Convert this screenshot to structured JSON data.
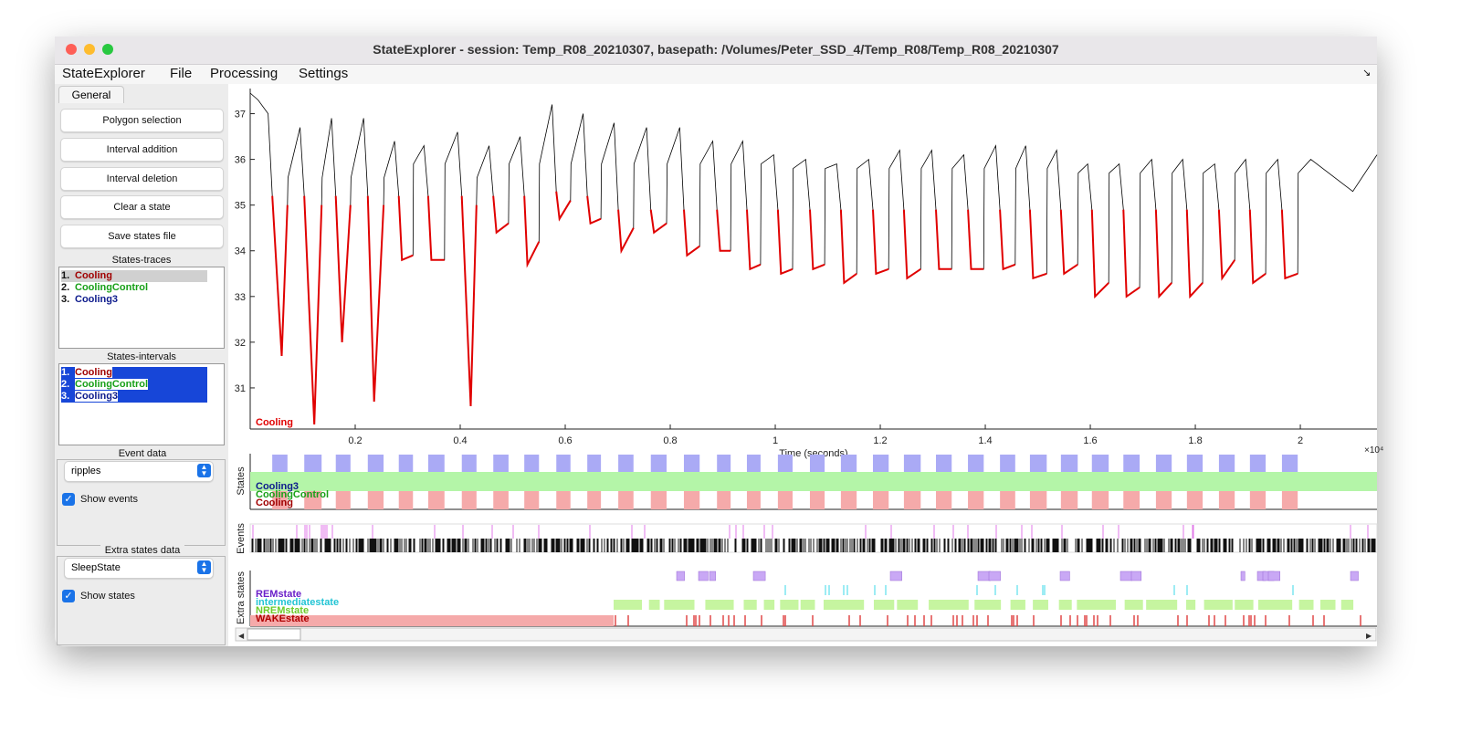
{
  "window": {
    "title": "StateExplorer  -  session: Temp_R08_20210307, basepath: /Volumes/Peter_SSD_4/Temp_R08/Temp_R08_20210307"
  },
  "menu": [
    "StateExplorer",
    "File",
    "Processing",
    "Settings"
  ],
  "sidebar": {
    "tab": "General",
    "buttons": [
      "Polygon selection",
      "Interval addition",
      "Interval deletion",
      "Clear a state",
      "Save states file"
    ],
    "traces": {
      "title": "States-traces",
      "items": [
        [
          "1.",
          "Cooling"
        ],
        [
          "2.",
          "CoolingControl"
        ],
        [
          "3.",
          "Cooling3"
        ]
      ]
    },
    "intervals": {
      "title": "States-intervals",
      "items": [
        [
          "1.",
          "Cooling"
        ],
        [
          "2.",
          "CoolingControl"
        ],
        [
          "3.",
          "Cooling3"
        ]
      ]
    },
    "events": {
      "title": "Event data",
      "select": "ripples",
      "checkbox": "Show events"
    },
    "extra": {
      "title": "Extra states data",
      "select": "SleepState",
      "checkbox": "Show states"
    },
    "item_colors": [
      "#a00000",
      "#18a018",
      "#0c1a8c"
    ]
  },
  "chart_data": {
    "type": "line",
    "label": "Cooling",
    "color": "#000000",
    "highlight_color": "#e00000",
    "xlabel": "Time (seconds)",
    "x_exponent": "×10⁴",
    "xlim": [
      0,
      2.146
    ],
    "ylim": [
      30.1,
      37.55
    ],
    "xticks": [
      0.2,
      0.4,
      0.6,
      0.8,
      1,
      1.2,
      1.4,
      1.6,
      1.8,
      2
    ],
    "yticks": [
      31,
      32,
      33,
      34,
      35,
      36,
      37
    ],
    "x": [
      0,
      0.015,
      0.034,
      0.042,
      0.06,
      0.071,
      0.072,
      0.095,
      0.103,
      0.122,
      0.136,
      0.137,
      0.155,
      0.163,
      0.175,
      0.191,
      0.192,
      0.216,
      0.224,
      0.236,
      0.254,
      0.255,
      0.275,
      0.283,
      0.289,
      0.31,
      0.311,
      0.331,
      0.339,
      0.345,
      0.37,
      0.371,
      0.395,
      0.403,
      0.42,
      0.431,
      0.432,
      0.455,
      0.463,
      0.469,
      0.492,
      0.493,
      0.514,
      0.522,
      0.528,
      0.55,
      0.551,
      0.575,
      0.583,
      0.589,
      0.61,
      0.611,
      0.634,
      0.642,
      0.648,
      0.668,
      0.669,
      0.693,
      0.701,
      0.707,
      0.73,
      0.731,
      0.755,
      0.763,
      0.769,
      0.793,
      0.794,
      0.818,
      0.826,
      0.832,
      0.856,
      0.857,
      0.881,
      0.889,
      0.895,
      0.915,
      0.916,
      0.938,
      0.946,
      0.952,
      0.972,
      0.973,
      0.997,
      1.005,
      1.011,
      1.033,
      1.034,
      1.058,
      1.066,
      1.072,
      1.094,
      1.095,
      1.117,
      1.125,
      1.131,
      1.155,
      1.156,
      1.178,
      1.186,
      1.192,
      1.216,
      1.217,
      1.237,
      1.245,
      1.251,
      1.277,
      1.278,
      1.298,
      1.306,
      1.312,
      1.336,
      1.337,
      1.359,
      1.367,
      1.373,
      1.397,
      1.398,
      1.42,
      1.428,
      1.434,
      1.457,
      1.458,
      1.477,
      1.485,
      1.491,
      1.517,
      1.518,
      1.536,
      1.544,
      1.55,
      1.576,
      1.577,
      1.595,
      1.603,
      1.609,
      1.635,
      1.636,
      1.655,
      1.663,
      1.669,
      1.694,
      1.695,
      1.717,
      1.725,
      1.731,
      1.755,
      1.756,
      1.776,
      1.784,
      1.79,
      1.814,
      1.815,
      1.837,
      1.845,
      1.851,
      1.875,
      1.876,
      1.896,
      1.904,
      1.91,
      1.934,
      1.935,
      1.957,
      1.965,
      1.971,
      1.995,
      1.996,
      2.02,
      2.1,
      2.146
    ],
    "values": [
      37.45,
      37.3,
      37.0,
      35.2,
      31.7,
      35.0,
      35.6,
      36.7,
      35.2,
      30.2,
      35.0,
      35.6,
      36.9,
      35.2,
      32.0,
      35.0,
      35.6,
      36.9,
      35.2,
      30.7,
      35.0,
      35.6,
      36.4,
      35.2,
      33.8,
      33.9,
      35.9,
      36.3,
      35.2,
      33.8,
      33.8,
      35.9,
      36.6,
      35.2,
      30.6,
      35.0,
      35.6,
      36.3,
      35.2,
      34.4,
      34.6,
      35.9,
      36.5,
      35.2,
      33.7,
      34.2,
      35.9,
      37.2,
      35.3,
      34.7,
      35.1,
      35.9,
      37.0,
      35.2,
      34.6,
      34.7,
      35.9,
      36.8,
      34.9,
      34.0,
      34.5,
      35.9,
      36.7,
      34.9,
      34.4,
      34.6,
      35.9,
      36.7,
      34.9,
      33.9,
      34.1,
      35.9,
      36.4,
      34.9,
      34.0,
      34.0,
      35.9,
      36.4,
      34.9,
      33.6,
      33.7,
      35.9,
      36.1,
      34.9,
      33.5,
      33.6,
      35.8,
      36.0,
      34.9,
      33.6,
      33.7,
      35.8,
      35.9,
      34.9,
      33.3,
      33.5,
      35.8,
      36.0,
      34.9,
      33.5,
      33.6,
      35.8,
      36.2,
      34.9,
      33.4,
      33.6,
      35.8,
      36.2,
      34.9,
      33.6,
      33.6,
      35.8,
      36.1,
      34.9,
      33.6,
      33.6,
      35.8,
      36.3,
      34.9,
      33.6,
      33.7,
      35.8,
      36.3,
      34.9,
      33.4,
      33.5,
      35.8,
      36.2,
      34.9,
      33.5,
      33.7,
      35.7,
      35.9,
      34.9,
      33.0,
      33.3,
      35.7,
      35.9,
      34.9,
      33.0,
      33.2,
      35.7,
      36.0,
      34.9,
      33.0,
      33.3,
      35.7,
      36.0,
      34.9,
      33.0,
      33.3,
      35.7,
      35.9,
      34.9,
      33.4,
      33.8,
      35.7,
      36.0,
      34.9,
      33.3,
      33.5,
      35.7,
      36.0,
      34.9,
      33.4,
      33.5,
      35.7,
      36.0,
      35.3,
      36.1
    ],
    "cooling_intervals": [
      [
        0.042,
        0.071
      ],
      [
        0.103,
        0.136
      ],
      [
        0.163,
        0.191
      ],
      [
        0.224,
        0.254
      ],
      [
        0.283,
        0.31
      ],
      [
        0.339,
        0.37
      ],
      [
        0.403,
        0.431
      ],
      [
        0.463,
        0.492
      ],
      [
        0.522,
        0.55
      ],
      [
        0.583,
        0.61
      ],
      [
        0.642,
        0.668
      ],
      [
        0.701,
        0.73
      ],
      [
        0.763,
        0.793
      ],
      [
        0.826,
        0.856
      ],
      [
        0.889,
        0.915
      ],
      [
        0.946,
        0.972
      ],
      [
        1.005,
        1.033
      ],
      [
        1.066,
        1.094
      ],
      [
        1.125,
        1.155
      ],
      [
        1.186,
        1.216
      ],
      [
        1.245,
        1.277
      ],
      [
        1.306,
        1.336
      ],
      [
        1.367,
        1.397
      ],
      [
        1.428,
        1.457
      ],
      [
        1.485,
        1.517
      ],
      [
        1.544,
        1.576
      ],
      [
        1.603,
        1.635
      ],
      [
        1.663,
        1.694
      ],
      [
        1.725,
        1.755
      ],
      [
        1.784,
        1.814
      ],
      [
        1.845,
        1.875
      ],
      [
        1.904,
        1.934
      ],
      [
        1.965,
        1.995
      ]
    ]
  },
  "states_panel": {
    "ylabel": "States",
    "labels": [
      "Cooling3",
      "CoolingControl",
      "Cooling"
    ],
    "colors": [
      "#0c1a8c",
      "#18a018",
      "#a00000"
    ],
    "fills": [
      "#aaaaf5",
      "#b4f5a8",
      "#f5aaaa"
    ]
  },
  "events_panel": {
    "ylabel": "Events"
  },
  "extra_panel": {
    "ylabel": "Extra states",
    "labels": [
      "REMstate",
      "intermediatestate",
      "NREMstate",
      "WAKEstate"
    ],
    "colors": [
      "#6a1fc9",
      "#22c4d4",
      "#6ccc2a",
      "#b00000"
    ],
    "fills": [
      "#c9a8f5",
      "#7de6f0",
      "#c6f5a0",
      "#f5aaaa"
    ]
  }
}
